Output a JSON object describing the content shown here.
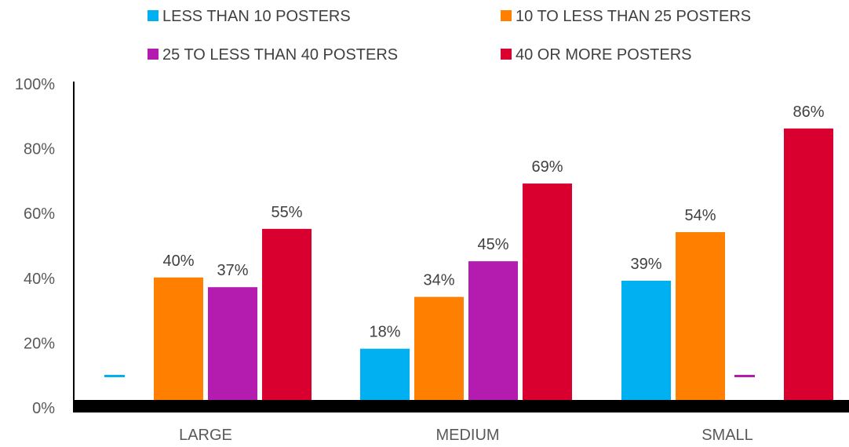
{
  "chart_data": {
    "type": "bar",
    "title": "",
    "xlabel": "",
    "ylabel": "",
    "categories": [
      "LARGE",
      "MEDIUM",
      "SMALL"
    ],
    "ylim": [
      0,
      100
    ],
    "yticks": [
      "0%",
      "20%",
      "40%",
      "60%",
      "80%",
      "100%"
    ],
    "grid": false,
    "legend_position": "top",
    "series": [
      {
        "name": "LESS THAN 10 POSTERS",
        "color": "#00b0f0",
        "values": [
          null,
          18,
          39
        ],
        "labels": [
          "",
          "18%",
          "39%"
        ]
      },
      {
        "name": "10 TO LESS THAN 25 POSTERS",
        "color": "#ff8000",
        "values": [
          40,
          34,
          54
        ],
        "labels": [
          "40%",
          "34%",
          "54%"
        ]
      },
      {
        "name": "25 TO LESS THAN 40 POSTERS",
        "color": "#b41cb0",
        "values": [
          37,
          45,
          null
        ],
        "labels": [
          "37%",
          "45%",
          ""
        ]
      },
      {
        "name": "40 OR MORE POSTERS",
        "color": "#d9002f",
        "values": [
          55,
          69,
          86
        ],
        "labels": [
          "55%",
          "69%",
          "86%"
        ]
      }
    ]
  }
}
